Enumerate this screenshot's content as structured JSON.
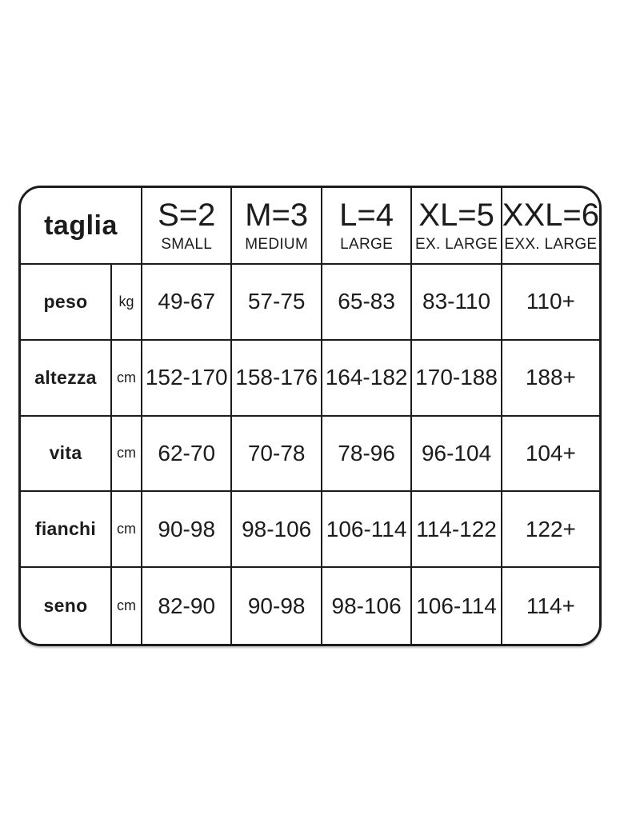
{
  "chart_data": {
    "type": "table",
    "title": "taglia",
    "columns": [
      {
        "code": "S=2",
        "name": "SMALL"
      },
      {
        "code": "M=3",
        "name": "MEDIUM"
      },
      {
        "code": "L=4",
        "name": "LARGE"
      },
      {
        "code": "XL=5",
        "name": "EX. LARGE"
      },
      {
        "code": "XXL=6",
        "name": "EXX. LARGE"
      }
    ],
    "rows": [
      {
        "label": "peso",
        "unit": "kg",
        "values": [
          "49-67",
          "57-75",
          "65-83",
          "83-110",
          "110+"
        ]
      },
      {
        "label": "altezza",
        "unit": "cm",
        "values": [
          "152-170",
          "158-176",
          "164-182",
          "170-188",
          "188+"
        ]
      },
      {
        "label": "vita",
        "unit": "cm",
        "values": [
          "62-70",
          "70-78",
          "78-96",
          "96-104",
          "104+"
        ]
      },
      {
        "label": "fianchi",
        "unit": "cm",
        "values": [
          "90-98",
          "98-106",
          "106-114",
          "114-122",
          "122+"
        ]
      },
      {
        "label": "seno",
        "unit": "cm",
        "values": [
          "82-90",
          "90-98",
          "98-106",
          "106-114",
          "114+"
        ]
      }
    ]
  },
  "colors": {
    "border": "#1c1c1c",
    "text": "#1c1c1c",
    "background": "#ffffff"
  }
}
